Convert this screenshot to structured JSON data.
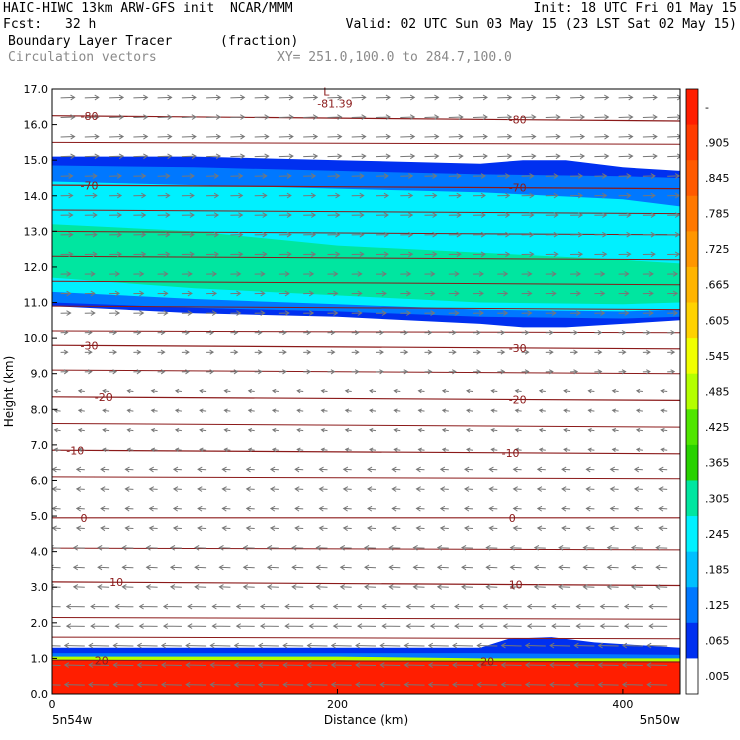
{
  "header": {
    "title": "HAIC-HIWC 13km ARW-GFS init  NCAR/MMM",
    "init": "Init: 18 UTC Fri 01 May 15",
    "fcst_label": "Fcst:",
    "fcst_value": "32 h",
    "valid": "Valid: 02 UTC Sun 03 May 15 (23 LST Sat 02 May 15)",
    "field1": "Boundary Layer Tracer",
    "field1_units": "(fraction)",
    "field2": "Circulation vectors",
    "xy": "XY= 251.0,100.0 to 284.7,100.0"
  },
  "colors": {
    "background": "#ffffff",
    "contour": "#8b1a1a",
    "vectors": "#777777",
    "gray_text": "#8a8a8a"
  },
  "chart_data": {
    "type": "heatmap",
    "title": "Boundary Layer Tracer",
    "xlabel": "Distance (km)",
    "ylabel": "Height (km)",
    "xlim": [
      0,
      440
    ],
    "ylim": [
      0,
      17
    ],
    "x_ticks": [
      {
        "value": 0,
        "label": "0"
      },
      {
        "value": 200,
        "label": "200"
      },
      {
        "value": 400,
        "label": "400"
      }
    ],
    "x_end_labels": {
      "left": "5n54w",
      "right": "5n50w"
    },
    "y_ticks": [
      {
        "value": 0,
        "label": "0.0"
      },
      {
        "value": 1,
        "label": "1.0"
      },
      {
        "value": 2,
        "label": "2.0"
      },
      {
        "value": 3,
        "label": "3.0"
      },
      {
        "value": 4,
        "label": "4.0"
      },
      {
        "value": 5,
        "label": "5.0"
      },
      {
        "value": 6,
        "label": "6.0"
      },
      {
        "value": 7,
        "label": "7.0"
      },
      {
        "value": 8,
        "label": "8.0"
      },
      {
        "value": 9,
        "label": "9.0"
      },
      {
        "value": 10,
        "label": "10.0"
      },
      {
        "value": 11,
        "label": "11.0"
      },
      {
        "value": 12,
        "label": "12.0"
      },
      {
        "value": 13,
        "label": "13.0"
      },
      {
        "value": 14,
        "label": "14.0"
      },
      {
        "value": 15,
        "label": "15.0"
      },
      {
        "value": 16,
        "label": "16.0"
      },
      {
        "value": 17,
        "label": "17.0"
      }
    ],
    "colorbar": {
      "labels": [
        "-",
        ".905",
        ".845",
        ".785",
        ".725",
        ".665",
        ".605",
        ".545",
        ".485",
        ".425",
        ".365",
        ".305",
        ".245",
        ".185",
        ".125",
        ".065",
        ".005"
      ],
      "colors": [
        "#ff1e00",
        "#ff3c00",
        "#ff5a00",
        "#ff7800",
        "#ff9600",
        "#ffb400",
        "#ffd200",
        "#f0ff00",
        "#b4ff00",
        "#50e600",
        "#28d200",
        "#00e6a0",
        "#00f0ff",
        "#00bfff",
        "#0078ff",
        "#0030f0",
        "#ffffff"
      ]
    },
    "tracer_layers": [
      {
        "level": 0.045,
        "x": [
          0,
          100,
          200,
          300,
          330,
          360,
          400,
          440
        ],
        "bottom": [
          10.9,
          10.7,
          10.6,
          10.4,
          10.3,
          10.3,
          10.4,
          10.5
        ],
        "top": [
          15.1,
          15.1,
          15.0,
          14.9,
          15.0,
          15.0,
          14.8,
          14.7
        ]
      },
      {
        "level": 0.105,
        "x": [
          0,
          100,
          200,
          300,
          400,
          440
        ],
        "bottom": [
          11.0,
          10.85,
          10.75,
          10.6,
          10.55,
          10.6
        ],
        "top": [
          14.85,
          14.8,
          14.7,
          14.6,
          14.55,
          14.5
        ]
      },
      {
        "level": 0.2,
        "x": [
          0,
          100,
          200,
          300,
          400,
          440
        ],
        "bottom": [
          11.3,
          11.1,
          10.95,
          10.8,
          10.75,
          10.8
        ],
        "top": [
          14.4,
          14.3,
          14.2,
          14.1,
          13.9,
          13.7
        ]
      },
      {
        "level": 0.28,
        "x": [
          0,
          100,
          200,
          300,
          400,
          440
        ],
        "bottom": [
          11.7,
          11.4,
          11.2,
          11.0,
          10.95,
          11.0
        ],
        "top": [
          13.2,
          13.0,
          12.6,
          12.4,
          12.2,
          12.1
        ]
      },
      {
        "level": 0.005,
        "x": [
          0,
          100,
          200,
          300,
          320,
          350,
          380,
          440
        ],
        "bottom": [
          0.0,
          0.0,
          0.0,
          0.0,
          0.0,
          0.0,
          0.0,
          0.0
        ],
        "top": [
          1.3,
          1.3,
          1.3,
          1.3,
          1.55,
          1.6,
          1.45,
          1.3
        ]
      },
      {
        "level": 0.105,
        "x": [
          0,
          100,
          200,
          300,
          440
        ],
        "bottom": [
          0.0,
          0.0,
          0.0,
          0.0,
          0.0
        ],
        "top": [
          1.15,
          1.15,
          1.15,
          1.15,
          1.1
        ]
      },
      {
        "level": 0.45,
        "x": [
          0,
          100,
          200,
          300,
          440
        ],
        "bottom": [
          0.0,
          0.0,
          0.0,
          0.0,
          0.0
        ],
        "top": [
          1.05,
          1.05,
          1.05,
          1.0,
          1.0
        ]
      },
      {
        "level": 0.97,
        "x": [
          0,
          100,
          200,
          300,
          440
        ],
        "bottom": [
          0.0,
          0.0,
          0.0,
          0.0,
          0.0
        ],
        "top": [
          0.95,
          0.95,
          0.95,
          0.9,
          0.9
        ]
      }
    ],
    "temperature_contours": [
      {
        "value": -80,
        "label": "-80",
        "x": [
          0,
          440
        ],
        "y": [
          16.25,
          16.1
        ],
        "label_at": [
          20,
          320
        ]
      },
      {
        "value": -70,
        "label": "-70",
        "x": [
          0,
          440
        ],
        "y": [
          14.3,
          14.2
        ],
        "label_at": [
          20,
          320
        ]
      },
      {
        "value": -30,
        "label": "-30",
        "x": [
          0,
          440
        ],
        "y": [
          9.8,
          9.7
        ],
        "label_at": [
          20,
          320
        ]
      },
      {
        "value": -20,
        "label": "-20",
        "x": [
          0,
          440
        ],
        "y": [
          8.35,
          8.25
        ],
        "label_at": [
          30,
          320
        ]
      },
      {
        "value": -10,
        "label": "-10",
        "x": [
          0,
          440
        ],
        "y": [
          6.85,
          6.75
        ],
        "label_at": [
          10,
          315
        ]
      },
      {
        "value": 0,
        "label": "0",
        "x": [
          0,
          440
        ],
        "y": [
          4.95,
          4.95
        ],
        "label_at": [
          20,
          320
        ]
      },
      {
        "value": 10,
        "label": "10",
        "x": [
          0,
          440
        ],
        "y": [
          3.15,
          3.05
        ],
        "label_at": [
          40,
          320
        ]
      },
      {
        "value": 20,
        "label": "20",
        "x": [
          0,
          440
        ],
        "y": [
          0.95,
          0.9
        ],
        "label_at": [
          30,
          300
        ]
      }
    ],
    "other_contour_levels": [
      {
        "x": [
          0,
          440
        ],
        "y": [
          17.1,
          17.0
        ]
      },
      {
        "x": [
          0,
          440
        ],
        "y": [
          15.5,
          15.45
        ]
      },
      {
        "x": [
          0,
          440
        ],
        "y": [
          13.6,
          13.5
        ]
      },
      {
        "x": [
          0,
          440
        ],
        "y": [
          13.0,
          12.9
        ]
      },
      {
        "x": [
          0,
          440
        ],
        "y": [
          12.3,
          12.2
        ]
      },
      {
        "x": [
          0,
          440
        ],
        "y": [
          11.6,
          11.5
        ]
      },
      {
        "x": [
          0,
          440
        ],
        "y": [
          10.9,
          10.8
        ]
      },
      {
        "x": [
          0,
          440
        ],
        "y": [
          10.2,
          10.15
        ]
      },
      {
        "x": [
          0,
          440
        ],
        "y": [
          9.1,
          9.0
        ]
      },
      {
        "x": [
          0,
          440
        ],
        "y": [
          7.6,
          7.5
        ]
      },
      {
        "x": [
          0,
          440
        ],
        "y": [
          6.1,
          6.05
        ]
      },
      {
        "x": [
          0,
          440
        ],
        "y": [
          4.1,
          4.05
        ]
      },
      {
        "x": [
          0,
          440
        ],
        "y": [
          2.15,
          2.1
        ]
      },
      {
        "x": [
          0,
          440
        ],
        "y": [
          1.6,
          1.55
        ]
      }
    ],
    "low_marker": {
      "symbol": "L",
      "value_label": "-81.39",
      "x": 190,
      "y": 16.65
    },
    "vectors_by_height": [
      {
        "y_from": 15.0,
        "y_to": 17.0,
        "u": 14,
        "v": 0.5
      },
      {
        "y_from": 12.0,
        "y_to": 15.0,
        "u": 12,
        "v": 0.3
      },
      {
        "y_from": 10.5,
        "y_to": 12.0,
        "u": 10,
        "v": 0.2
      },
      {
        "y_from": 9.0,
        "y_to": 10.5,
        "u": 7,
        "v": 0.3
      },
      {
        "y_from": 6.5,
        "y_to": 9.0,
        "u": -6,
        "v": 0.8
      },
      {
        "y_from": 4.5,
        "y_to": 6.5,
        "u": -8,
        "v": 0.5
      },
      {
        "y_from": 3.0,
        "y_to": 4.5,
        "u": -11,
        "v": 0.4
      },
      {
        "y_from": 1.5,
        "y_to": 3.0,
        "u": -18,
        "v": 0.3
      },
      {
        "y_from": 0.0,
        "y_to": 1.5,
        "u": -20,
        "v": 0.5
      }
    ]
  }
}
